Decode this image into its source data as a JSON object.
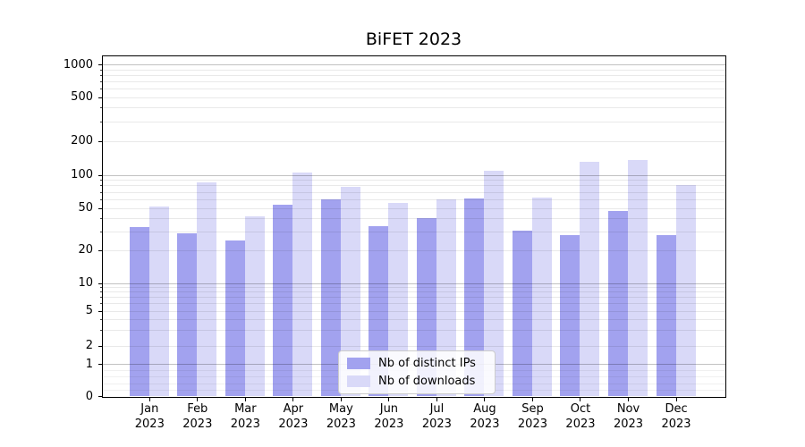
{
  "title": "BiFET 2023",
  "chart_data": {
    "type": "bar",
    "x_axis": {
      "months": [
        "Jan",
        "Feb",
        "Mar",
        "Apr",
        "May",
        "Jun",
        "Jul",
        "Aug",
        "Sep",
        "Oct",
        "Nov",
        "Dec"
      ],
      "year_label": "2023"
    },
    "y_axis": {
      "scale": "asinh-like (linear 0-1, logarithmic above)",
      "ticks": [
        0,
        1,
        2,
        5,
        10,
        20,
        50,
        100,
        200,
        500,
        1000
      ],
      "top_value": 1200
    },
    "series": [
      {
        "name": "Nb of distinct IPs",
        "color": "#a2a2ef",
        "values": [
          33,
          29,
          25,
          54,
          60,
          34,
          40,
          61,
          31,
          28,
          47,
          28
        ]
      },
      {
        "name": "Nb of downloads",
        "color": "#d9d9f8",
        "values": [
          52,
          86,
          42,
          106,
          78,
          56,
          60,
          110,
          63,
          132,
          136,
          82
        ]
      }
    ],
    "grid": {
      "major_lines_at": [
        1,
        10,
        100,
        1000
      ],
      "labeled_minor_lines_at": [
        2,
        5,
        20,
        50,
        200,
        500
      ],
      "orientation": "horizontal"
    },
    "legend_position": "lower center"
  }
}
